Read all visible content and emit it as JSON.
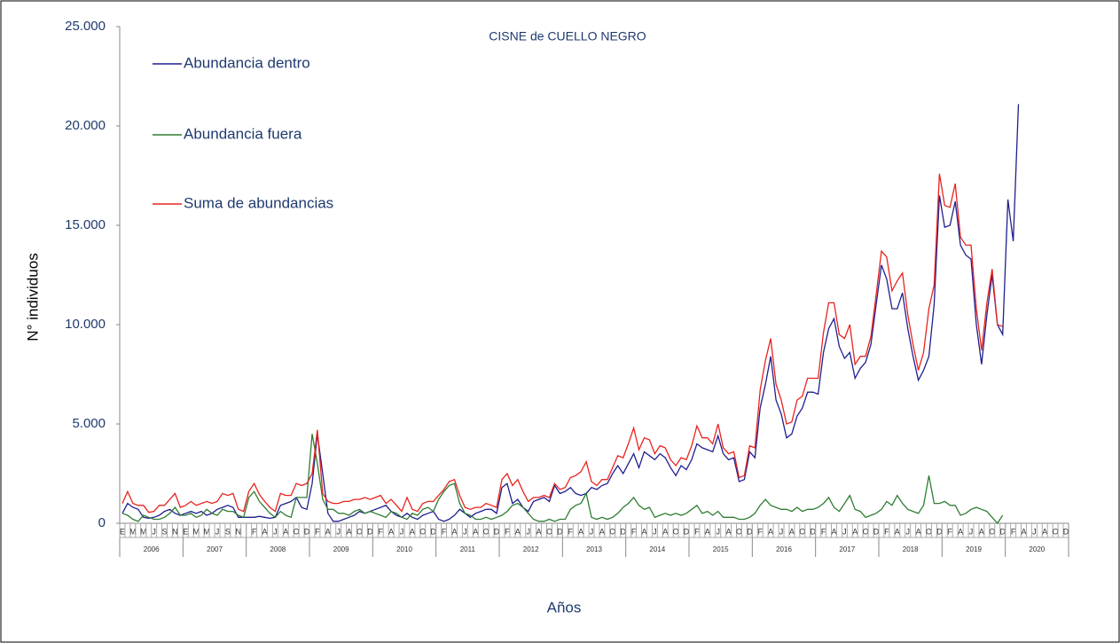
{
  "chart_data": {
    "type": "line",
    "title": "CISNE de CUELLO NEGRO",
    "y_label": "N° individuos",
    "x_label": "Años",
    "ylim": [
      0,
      25000
    ],
    "yticks": [
      0,
      {
        "value": 5000,
        "label": "5.000"
      },
      {
        "value": 10000,
        "label": "10.000"
      },
      {
        "value": 15000,
        "label": "15.000"
      },
      {
        "value": 20000,
        "label": "20.000"
      },
      {
        "value": 25000,
        "label": "25.000"
      }
    ],
    "years": [
      {
        "label": "2006",
        "months": [
          "E",
          null,
          "M",
          null,
          "M",
          null,
          "J",
          null,
          "S",
          null,
          "N",
          null
        ]
      },
      {
        "label": "2007",
        "months": [
          "E",
          null,
          "M",
          null,
          "M",
          null,
          "J",
          null,
          "S",
          null,
          "N",
          null
        ]
      },
      {
        "label": "2008",
        "months": [
          null,
          "F",
          null,
          "A",
          null,
          "J",
          null,
          "A",
          null,
          "O",
          null,
          "D"
        ]
      },
      {
        "label": "2009",
        "months": [
          null,
          "F",
          null,
          "A",
          null,
          "J",
          null,
          "A",
          null,
          "O",
          null,
          "D"
        ]
      },
      {
        "label": "2010",
        "months": [
          null,
          "F",
          null,
          "A",
          null,
          "J",
          null,
          "A",
          null,
          "O",
          null,
          "D"
        ]
      },
      {
        "label": "2011",
        "months": [
          null,
          "F",
          null,
          "A",
          null,
          "J",
          null,
          "A",
          null,
          "O",
          null,
          "D"
        ]
      },
      {
        "label": "2012",
        "months": [
          null,
          "F",
          null,
          "A",
          null,
          "J",
          null,
          "A",
          null,
          "O",
          null,
          "D"
        ]
      },
      {
        "label": "2013",
        "months": [
          null,
          "F",
          null,
          "A",
          null,
          "J",
          null,
          "A",
          null,
          "O",
          null,
          "D"
        ]
      },
      {
        "label": "2014",
        "months": [
          null,
          "F",
          null,
          "A",
          null,
          "J",
          null,
          "A",
          null,
          "O",
          null,
          "D"
        ]
      },
      {
        "label": "2015",
        "months": [
          null,
          "F",
          null,
          "A",
          null,
          "J",
          null,
          "A",
          null,
          "O",
          null,
          "D"
        ]
      },
      {
        "label": "2016",
        "months": [
          null,
          "F",
          null,
          "A",
          null,
          "J",
          null,
          "A",
          null,
          "O",
          null,
          "D"
        ]
      },
      {
        "label": "2017",
        "months": [
          null,
          "F",
          null,
          "A",
          null,
          "J",
          null,
          "A",
          null,
          "O",
          null,
          "D"
        ]
      },
      {
        "label": "2018",
        "months": [
          null,
          "F",
          null,
          "A",
          null,
          "J",
          null,
          "A",
          null,
          "O",
          null,
          "D"
        ]
      },
      {
        "label": "2019",
        "months": [
          null,
          "F",
          null,
          "A",
          null,
          "J",
          null,
          "A",
          null,
          "O",
          null,
          "D"
        ]
      },
      {
        "label": "2020",
        "months": [
          null,
          "F",
          null,
          "A",
          null,
          "J",
          null,
          "A",
          null,
          "O",
          null,
          "D"
        ]
      }
    ],
    "series": [
      {
        "name": "Abundancia dentro",
        "color": "#1f1f8f",
        "values": [
          500,
          1000,
          800,
          700,
          300,
          250,
          300,
          400,
          600,
          700,
          500,
          400,
          500,
          600,
          500,
          600,
          400,
          500,
          700,
          800,
          900,
          800,
          300,
          300,
          300,
          300,
          350,
          300,
          250,
          300,
          900,
          1000,
          1100,
          1300,
          800,
          700,
          2000,
          4500,
          2500,
          500,
          100,
          100,
          200,
          300,
          400,
          600,
          500,
          600,
          700,
          800,
          900,
          600,
          400,
          300,
          500,
          300,
          200,
          400,
          500,
          600,
          200,
          100,
          200,
          400,
          700,
          500,
          300,
          500,
          600,
          700,
          700,
          500,
          1800,
          2000,
          1000,
          1200,
          800,
          600,
          1100,
          1200,
          1300,
          1100,
          1900,
          1500,
          1600,
          1800,
          1500,
          1400,
          1500,
          1800,
          1700,
          1900,
          2000,
          2500,
          2900,
          2500,
          3000,
          3500,
          2800,
          3600,
          3400,
          3200,
          3500,
          3300,
          2800,
          2400,
          2900,
          2700,
          3200,
          4000,
          3800,
          3700,
          3600,
          4400,
          3500,
          3200,
          3300,
          2100,
          2200,
          3600,
          3300,
          5800,
          7000,
          8400,
          6200,
          5500,
          4300,
          4500,
          5400,
          5800,
          6600,
          6600,
          6500,
          8600,
          9800,
          10300,
          8900,
          8300,
          8600,
          7300,
          7800,
          8100,
          9000,
          11000,
          13000,
          12300,
          10800,
          10800,
          11600,
          9800,
          8400,
          7200,
          7700,
          8400,
          11000,
          16500,
          14900,
          15000,
          16200,
          14000,
          13500,
          13300,
          10000,
          8000,
          10500,
          12500,
          10000,
          9500,
          16300,
          14200,
          21100,
          null,
          null,
          null,
          null,
          null,
          null,
          null,
          null,
          null
        ]
      },
      {
        "name": "Abundancia fuera",
        "color": "#2e7d32",
        "values": [
          500,
          400,
          200,
          100,
          400,
          300,
          200,
          200,
          300,
          500,
          800,
          400,
          400,
          500,
          300,
          400,
          700,
          500,
          400,
          700,
          600,
          600,
          400,
          300,
          1300,
          1600,
          1100,
          800,
          500,
          300,
          600,
          400,
          300,
          1300,
          1300,
          1300,
          4500,
          3000,
          1200,
          700,
          700,
          500,
          500,
          400,
          600,
          700,
          500,
          600,
          500,
          400,
          300,
          600,
          500,
          300,
          200,
          500,
          400,
          700,
          800,
          600,
          1200,
          1600,
          1900,
          2000,
          1000,
          500,
          400,
          200,
          200,
          300,
          200,
          300,
          400,
          600,
          900,
          1000,
          800,
          500,
          200,
          100,
          100,
          200,
          100,
          200,
          200,
          700,
          900,
          1000,
          1500,
          300,
          200,
          300,
          200,
          300,
          500,
          800,
          1000,
          1300,
          900,
          700,
          800,
          300,
          400,
          500,
          400,
          500,
          400,
          500,
          700,
          900,
          500,
          600,
          400,
          600,
          300,
          300,
          300,
          200,
          200,
          300,
          500,
          900,
          1200,
          900,
          800,
          700,
          700,
          600,
          800,
          600,
          700,
          700,
          800,
          1000,
          1300,
          800,
          600,
          1000,
          1400,
          700,
          600,
          300,
          400,
          500,
          700,
          1100,
          900,
          1400,
          1000,
          700,
          600,
          500,
          900,
          2400,
          1000,
          1000,
          1100,
          900,
          900,
          400,
          500,
          700,
          800,
          700,
          600,
          300,
          0,
          400,
          null,
          null,
          null,
          null,
          null,
          null,
          null,
          null,
          null,
          null,
          null,
          null
        ]
      },
      {
        "name": "Suma de abundancias",
        "color": "#e8231e",
        "values": [
          1000,
          1600,
          1000,
          900,
          900,
          550,
          600,
          900,
          900,
          1200,
          1500,
          800,
          900,
          1100,
          900,
          1000,
          1100,
          1000,
          1100,
          1500,
          1400,
          1500,
          700,
          600,
          1600,
          2000,
          1450,
          1100,
          800,
          600,
          1500,
          1400,
          1400,
          2000,
          1900,
          2000,
          2500,
          4700,
          1500,
          1100,
          1000,
          1000,
          1100,
          1100,
          1200,
          1200,
          1300,
          1200,
          1300,
          1400,
          1000,
          1200,
          900,
          600,
          1300,
          700,
          600,
          1000,
          1100,
          1100,
          1400,
          1700,
          2100,
          2200,
          1400,
          800,
          700,
          800,
          800,
          1000,
          900,
          800,
          2200,
          2500,
          1900,
          2200,
          1600,
          1100,
          1300,
          1300,
          1400,
          1300,
          2000,
          1700,
          1800,
          2300,
          2400,
          2600,
          3100,
          2100,
          1900,
          2200,
          2200,
          2800,
          3400,
          3300,
          4000,
          4800,
          3700,
          4300,
          4200,
          3500,
          3900,
          3800,
          3200,
          2900,
          3300,
          3200,
          3900,
          4900,
          4300,
          4300,
          4000,
          5000,
          3800,
          3500,
          3600,
          2300,
          2400,
          3900,
          3800,
          6700,
          8200,
          9300,
          7000,
          6200,
          5000,
          5100,
          6200,
          6400,
          7300,
          7300,
          7300,
          9600,
          11100,
          11100,
          9500,
          9300,
          10000,
          8000,
          8400,
          8400,
          9400,
          11500,
          13700,
          13400,
          11700,
          12200,
          12600,
          10500,
          9000,
          7700,
          8600,
          10800,
          12000,
          17600,
          16000,
          15900,
          17100,
          14400,
          14000,
          14000,
          10800,
          8700,
          11100,
          12800,
          10000,
          9900,
          null,
          null,
          null,
          null,
          null,
          null,
          null,
          null,
          null,
          null,
          null,
          null
        ]
      }
    ]
  }
}
